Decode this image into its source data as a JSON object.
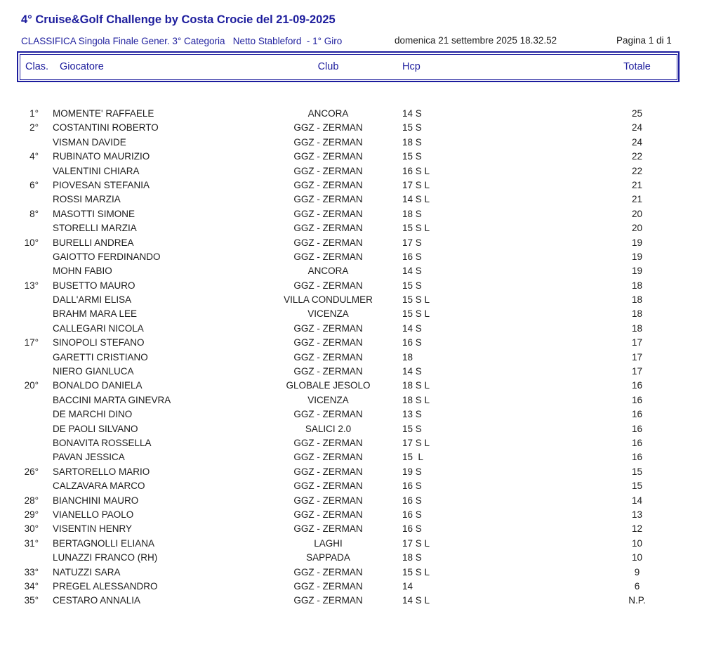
{
  "header": {
    "title": "4° Cruise&Golf Challenge by Costa Crocie del 21-09-2025",
    "subtitle": "CLASSIFICA Singola Finale Gener. 3° Categoria   Netto Stableford  - 1° Giro",
    "datetime": "domenica 21 settembre 2025 18.32.52",
    "page_indicator": "Pagina 1 di 1"
  },
  "colors": {
    "accent_navy": "#1d1d9d",
    "text_black": "#1c1c1c",
    "background": "#ffffff"
  },
  "table": {
    "columns": [
      "Clas.",
      "Giocatore",
      "Club",
      "Hcp",
      "Totale"
    ],
    "rows": [
      {
        "clas": "1°",
        "giocatore": "MOMENTE' RAFFAELE",
        "club": "ANCORA",
        "hcp": "14 S",
        "totale": "25"
      },
      {
        "clas": "2°",
        "giocatore": "COSTANTINI ROBERTO",
        "club": "GGZ - ZERMAN",
        "hcp": "15 S",
        "totale": "24"
      },
      {
        "clas": "",
        "giocatore": "VISMAN DAVIDE",
        "club": "GGZ - ZERMAN",
        "hcp": "18 S",
        "totale": "24"
      },
      {
        "clas": "4°",
        "giocatore": "RUBINATO MAURIZIO",
        "club": "GGZ - ZERMAN",
        "hcp": "15 S",
        "totale": "22"
      },
      {
        "clas": "",
        "giocatore": "VALENTINI CHIARA",
        "club": "GGZ - ZERMAN",
        "hcp": "16 S L",
        "totale": "22"
      },
      {
        "clas": "6°",
        "giocatore": "PIOVESAN STEFANIA",
        "club": "GGZ - ZERMAN",
        "hcp": "17 S L",
        "totale": "21"
      },
      {
        "clas": "",
        "giocatore": "ROSSI MARZIA",
        "club": "GGZ - ZERMAN",
        "hcp": "14 S L",
        "totale": "21"
      },
      {
        "clas": "8°",
        "giocatore": "MASOTTI SIMONE",
        "club": "GGZ - ZERMAN",
        "hcp": "18 S",
        "totale": "20"
      },
      {
        "clas": "",
        "giocatore": "STORELLI MARZIA",
        "club": "GGZ - ZERMAN",
        "hcp": "15 S L",
        "totale": "20"
      },
      {
        "clas": "10°",
        "giocatore": "BURELLI ANDREA",
        "club": "GGZ - ZERMAN",
        "hcp": "17 S",
        "totale": "19"
      },
      {
        "clas": "",
        "giocatore": "GAIOTTO FERDINANDO",
        "club": "GGZ - ZERMAN",
        "hcp": "16 S",
        "totale": "19"
      },
      {
        "clas": "",
        "giocatore": "MOHN FABIO",
        "club": "ANCORA",
        "hcp": "14 S",
        "totale": "19"
      },
      {
        "clas": "13°",
        "giocatore": "BUSETTO MAURO",
        "club": "GGZ - ZERMAN",
        "hcp": "15 S",
        "totale": "18"
      },
      {
        "clas": "",
        "giocatore": "DALL'ARMI ELISA",
        "club": "VILLA CONDULMER",
        "hcp": "15 S L",
        "totale": "18"
      },
      {
        "clas": "",
        "giocatore": "BRAHM MARA LEE",
        "club": "VICENZA",
        "hcp": "15 S L",
        "totale": "18"
      },
      {
        "clas": "",
        "giocatore": "CALLEGARI NICOLA",
        "club": "GGZ - ZERMAN",
        "hcp": "14 S",
        "totale": "18"
      },
      {
        "clas": "17°",
        "giocatore": "SINOPOLI STEFANO",
        "club": "GGZ - ZERMAN",
        "hcp": "16 S",
        "totale": "17"
      },
      {
        "clas": "",
        "giocatore": "GARETTI CRISTIANO",
        "club": "GGZ - ZERMAN",
        "hcp": "18",
        "totale": "17"
      },
      {
        "clas": "",
        "giocatore": "NIERO GIANLUCA",
        "club": "GGZ - ZERMAN",
        "hcp": "14 S",
        "totale": "17"
      },
      {
        "clas": "20°",
        "giocatore": "BONALDO DANIELA",
        "club": "GLOBALE JESOLO",
        "hcp": "18 S L",
        "totale": "16"
      },
      {
        "clas": "",
        "giocatore": "BACCINI MARTA GINEVRA",
        "club": "VICENZA",
        "hcp": "18 S L",
        "totale": "16"
      },
      {
        "clas": "",
        "giocatore": "DE MARCHI DINO",
        "club": "GGZ - ZERMAN",
        "hcp": "13 S",
        "totale": "16"
      },
      {
        "clas": "",
        "giocatore": "DE PAOLI SILVANO",
        "club": "SALICI 2.0",
        "hcp": "15 S",
        "totale": "16"
      },
      {
        "clas": "",
        "giocatore": "BONAVITA ROSSELLA",
        "club": "GGZ - ZERMAN",
        "hcp": "17 S L",
        "totale": "16"
      },
      {
        "clas": "",
        "giocatore": "PAVAN JESSICA",
        "club": "GGZ - ZERMAN",
        "hcp": "15  L",
        "totale": "16"
      },
      {
        "clas": "26°",
        "giocatore": "SARTORELLO MARIO",
        "club": "GGZ - ZERMAN",
        "hcp": "19 S",
        "totale": "15"
      },
      {
        "clas": "",
        "giocatore": "CALZAVARA MARCO",
        "club": "GGZ - ZERMAN",
        "hcp": "16 S",
        "totale": "15"
      },
      {
        "clas": "28°",
        "giocatore": "BIANCHINI MAURO",
        "club": "GGZ - ZERMAN",
        "hcp": "16 S",
        "totale": "14"
      },
      {
        "clas": "29°",
        "giocatore": "VIANELLO PAOLO",
        "club": "GGZ - ZERMAN",
        "hcp": "16 S",
        "totale": "13"
      },
      {
        "clas": "30°",
        "giocatore": "VISENTIN HENRY",
        "club": "GGZ - ZERMAN",
        "hcp": "16 S",
        "totale": "12"
      },
      {
        "clas": "31°",
        "giocatore": "BERTAGNOLLI ELIANA",
        "club": "LAGHI",
        "hcp": "17 S L",
        "totale": "10"
      },
      {
        "clas": "",
        "giocatore": "LUNAZZI FRANCO (RH)",
        "club": "SAPPADA",
        "hcp": "18 S",
        "totale": "10"
      },
      {
        "clas": "33°",
        "giocatore": "NATUZZI SARA",
        "club": "GGZ - ZERMAN",
        "hcp": "15 S L",
        "totale": "9"
      },
      {
        "clas": "34°",
        "giocatore": "PREGEL ALESSANDRO",
        "club": "GGZ - ZERMAN",
        "hcp": "14",
        "totale": "6"
      },
      {
        "clas": "35°",
        "giocatore": "CESTARO ANNALIA",
        "club": "GGZ - ZERMAN",
        "hcp": "14 S L",
        "totale": "N.P."
      }
    ]
  }
}
